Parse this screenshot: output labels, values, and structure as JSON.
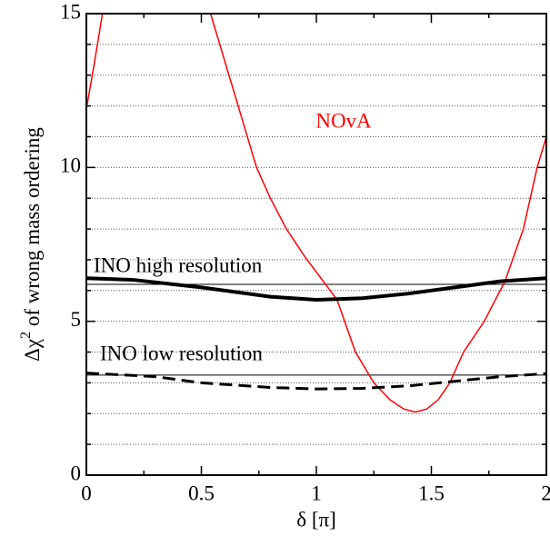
{
  "chart_data": {
    "type": "line",
    "xlabel": "δ [π]",
    "ylabel": [
      "Δχ",
      "2",
      " of wrong mass ordering"
    ],
    "xlim": [
      0,
      2
    ],
    "ylim": [
      0,
      15
    ],
    "xticks": [
      0,
      0.5,
      1,
      1.5,
      2
    ],
    "yticks": [
      0,
      5,
      10,
      15
    ],
    "xminor": [
      0.25,
      0.75,
      1.25,
      1.75
    ],
    "yminor": [
      1,
      2,
      3,
      4,
      6,
      7,
      8,
      9,
      11,
      12,
      13,
      14
    ],
    "ygrid": [
      1,
      2,
      3,
      4,
      5,
      6,
      7,
      8,
      9,
      10,
      11,
      12,
      13,
      14
    ],
    "reference_lines": [
      6.2,
      3.25
    ],
    "series": [
      {
        "name": "NOvA",
        "color": "#ff0000",
        "style": "solid",
        "width": 1.5,
        "x": [
          0,
          0.035,
          0.07,
          0.3,
          0.54,
          0.58,
          0.62,
          0.68,
          0.74,
          0.8,
          0.87,
          0.95,
          1.02,
          1.09,
          1.17,
          1.25,
          1.32,
          1.38,
          1.43,
          1.48,
          1.53,
          1.58,
          1.64,
          1.73,
          1.82,
          1.9,
          1.96,
          2
        ],
        "values": [
          11.9,
          13.4,
          15,
          null,
          15,
          14,
          13,
          11.5,
          10,
          9,
          8,
          7.1,
          6.4,
          5.7,
          4,
          3,
          2.45,
          2.15,
          2.05,
          2.15,
          2.45,
          3,
          4,
          5,
          6.3,
          8,
          10,
          11
        ]
      },
      {
        "name": "INO high resolution",
        "color": "#000000",
        "style": "solid",
        "width": 4,
        "x": [
          0,
          0.2,
          0.5,
          0.8,
          1,
          1.2,
          1.4,
          1.6,
          1.8,
          2
        ],
        "values": [
          6.4,
          6.35,
          6.1,
          5.8,
          5.7,
          5.75,
          5.9,
          6.1,
          6.3,
          6.4
        ]
      },
      {
        "name": "INO low resolution",
        "color": "#000000",
        "style": "dashed",
        "width": 3,
        "x": [
          0,
          0.3,
          0.5,
          0.8,
          1,
          1.2,
          1.4,
          1.6,
          1.8,
          2
        ],
        "values": [
          3.32,
          3.2,
          3.0,
          2.85,
          2.8,
          2.82,
          2.9,
          3.05,
          3.2,
          3.3
        ]
      }
    ]
  }
}
